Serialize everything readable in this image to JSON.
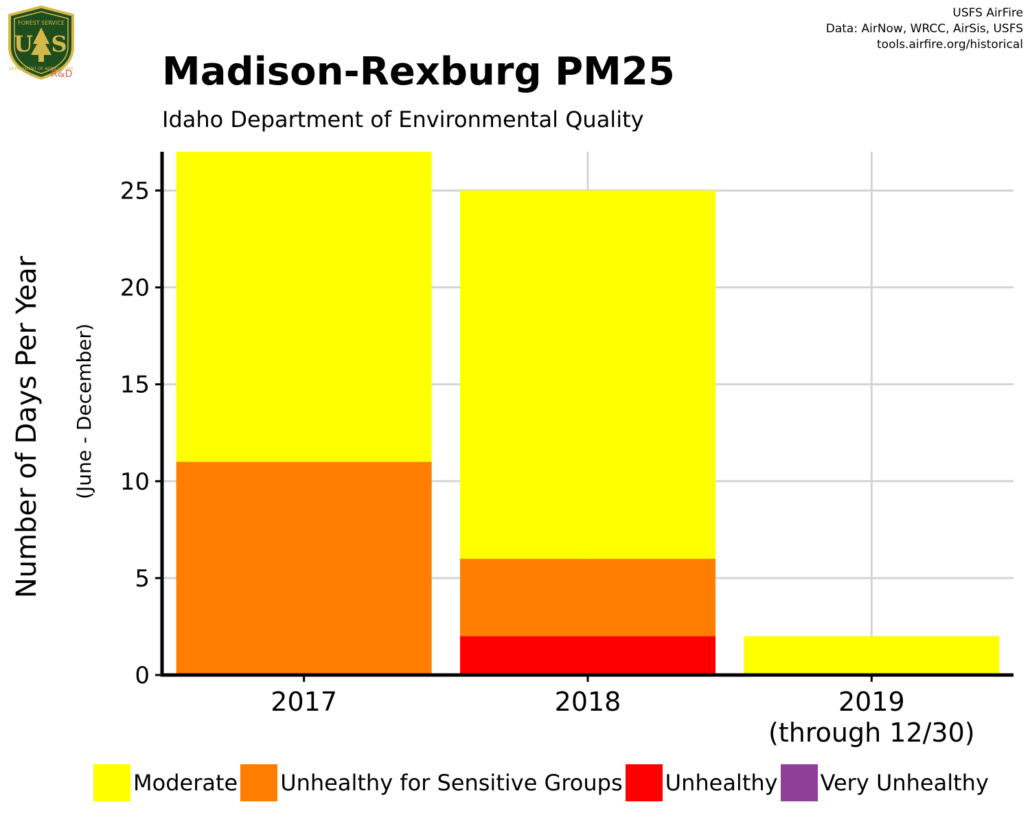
{
  "header": {
    "title": "Madison-Rexburg PM25",
    "subtitle": "Idaho Department of Environmental Quality",
    "credits": [
      "USFS AirFire",
      "Data: AirNow, WRCC, AirSis, USFS",
      "tools.airfire.org/historical"
    ]
  },
  "logo": {
    "text_top": "FOREST SERVICE",
    "text_main": "US",
    "text_bottom": "DEPARTMENT OF AGRICULTURE",
    "badge": "R&D",
    "colors": {
      "shield": "#1e4d1e",
      "gold": "#d4b84a",
      "badge": "#e06050"
    }
  },
  "chart_data": {
    "type": "bar",
    "stacked": true,
    "title": "Madison-Rexburg PM25",
    "subtitle": "Idaho Department of Environmental Quality",
    "ylabel": "Number of Days Per Year",
    "ylabel_sub": "(June - December)",
    "xlabel": "",
    "categories": [
      {
        "label": "2017",
        "sublabel": ""
      },
      {
        "label": "2018",
        "sublabel": ""
      },
      {
        "label": "2019",
        "sublabel": "(through 12/30)"
      }
    ],
    "ylim": [
      0,
      27
    ],
    "yticks": [
      0,
      5,
      10,
      15,
      20,
      25
    ],
    "grid": true,
    "legend_position": "bottom",
    "series": [
      {
        "name": "Unhealthy",
        "color": "#ff0000",
        "values": [
          0,
          2,
          0
        ]
      },
      {
        "name": "Unhealthy for Sensitive Groups",
        "color": "#ff7e00",
        "values": [
          11,
          4,
          0
        ]
      },
      {
        "name": "Moderate",
        "color": "#ffff00",
        "values": [
          16,
          19,
          2
        ]
      },
      {
        "name": "Very Unhealthy",
        "color": "#8f3f97",
        "values": [
          0,
          0,
          0
        ]
      }
    ]
  },
  "legend": [
    {
      "label": "Moderate",
      "color": "#ffff00"
    },
    {
      "label": "Unhealthy for Sensitive Groups",
      "color": "#ff7e00"
    },
    {
      "label": "Unhealthy",
      "color": "#ff0000"
    },
    {
      "label": "Very Unhealthy",
      "color": "#8f3f97"
    }
  ]
}
